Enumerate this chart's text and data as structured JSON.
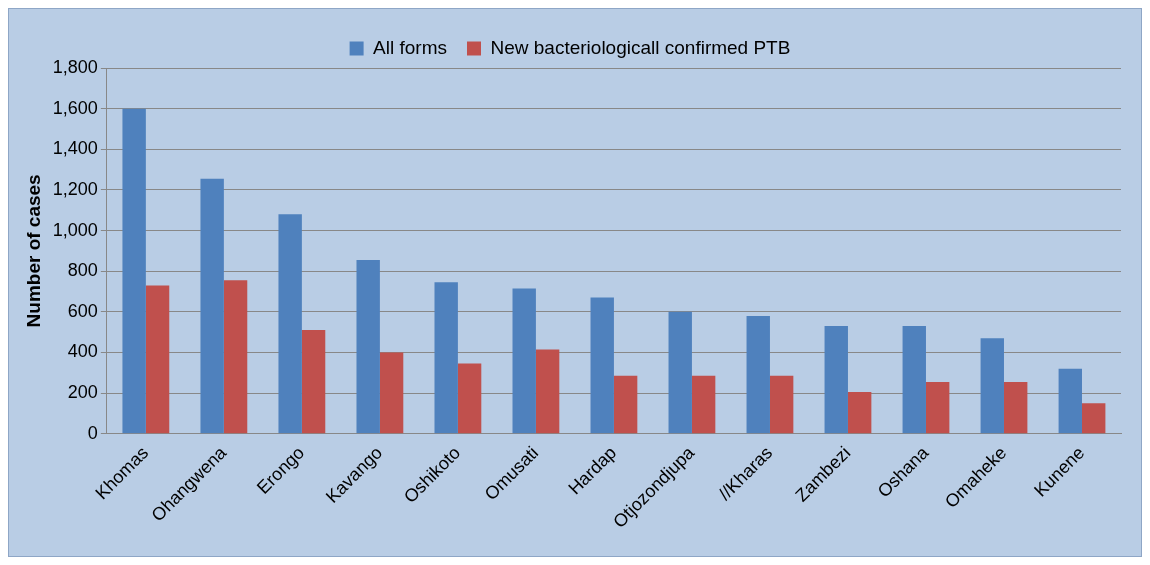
{
  "chart_data": {
    "type": "bar",
    "ylabel": "Number of cases",
    "categories": [
      "Khomas",
      "Ohangwena",
      "Erongo",
      "Kavango",
      "Oshikoto",
      "Omusati",
      "Hardap",
      "Otjozondjupa",
      "//Kharas",
      "Zambezi",
      "Oshana",
      "Omaheke",
      "Kunene"
    ],
    "series": [
      {
        "name": "All forms",
        "color": "#4f81bd",
        "values": [
          1600,
          1255,
          1080,
          855,
          745,
          715,
          670,
          600,
          580,
          530,
          530,
          470,
          320
        ]
      },
      {
        "name": "New bacteriologicall confirmed PTB",
        "color": "#c0504d",
        "values": [
          730,
          755,
          510,
          400,
          345,
          415,
          285,
          285,
          285,
          205,
          255,
          255,
          150
        ]
      }
    ],
    "ylim": [
      0,
      1800
    ],
    "yticks": [
      0,
      {
        "value": 200,
        "label": "200"
      },
      {
        "value": 400,
        "label": "400"
      },
      {
        "value": 600,
        "label": "600"
      },
      {
        "value": 800,
        "label": "800"
      },
      {
        "value": 1000,
        "label": "1,000"
      },
      {
        "value": 1200,
        "label": "1,200"
      },
      {
        "value": 1400,
        "label": "1,400"
      },
      {
        "value": 1600,
        "label": "1,600"
      },
      {
        "value": 1800,
        "label": "1,800"
      }
    ],
    "grid": "y",
    "legend": "top"
  }
}
